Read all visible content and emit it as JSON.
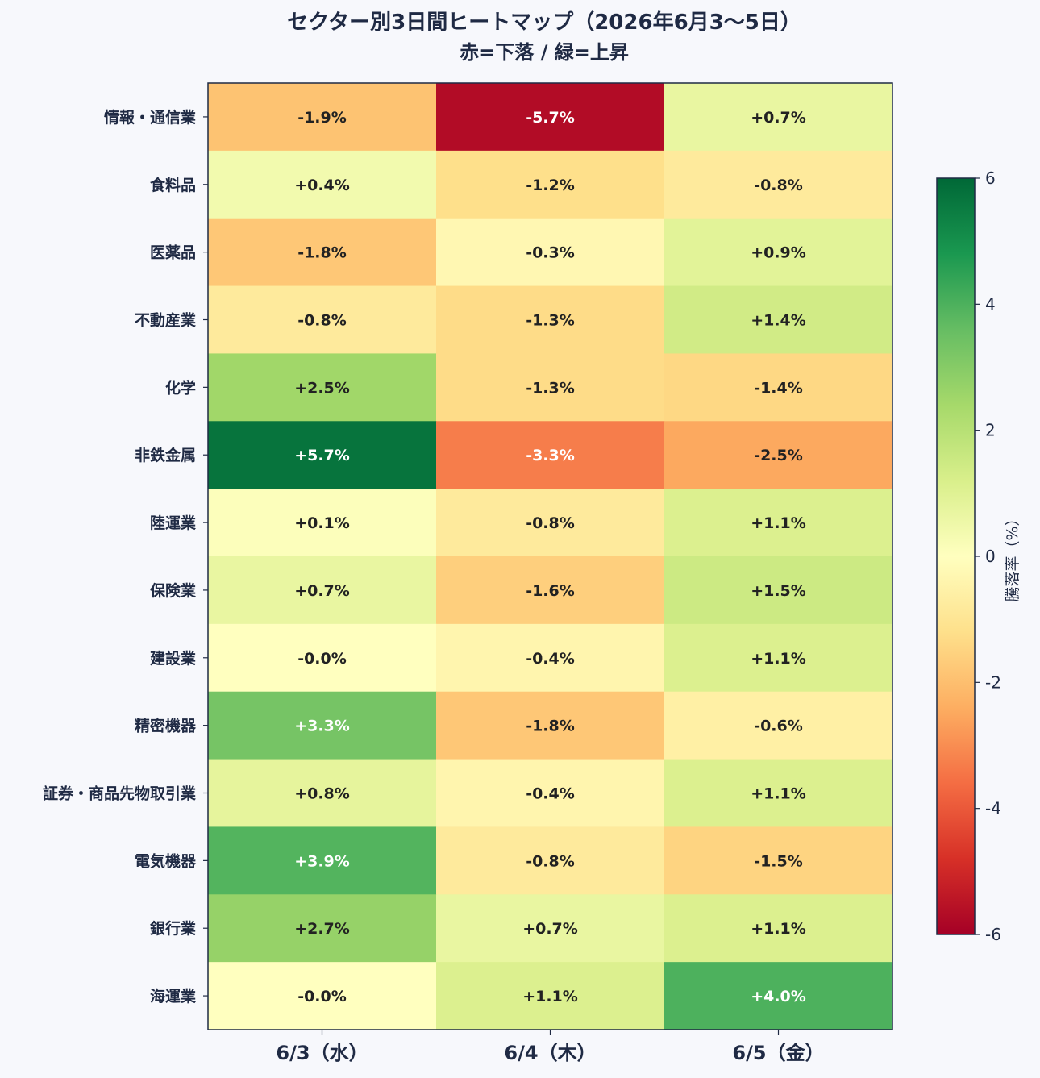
{
  "chart_data": {
    "type": "heatmap",
    "title": "セクター別3日間ヒートマップ（2026年6月3〜5日）",
    "subtitle": "赤=下落 / 緑=上昇",
    "columns": [
      "6/3（水）",
      "6/4（木）",
      "6/5（金）"
    ],
    "rows": [
      "情報・通信業",
      "食料品",
      "医薬品",
      "不動産業",
      "化学",
      "非鉄金属",
      "陸運業",
      "保険業",
      "建設業",
      "精密機器",
      "証券・商品先物取引業",
      "電気機器",
      "銀行業",
      "海運業"
    ],
    "values": [
      [
        -1.9,
        -5.7,
        0.7
      ],
      [
        0.4,
        -1.2,
        -0.8
      ],
      [
        -1.8,
        -0.3,
        0.9
      ],
      [
        -0.8,
        -1.3,
        1.4
      ],
      [
        2.5,
        -1.3,
        -1.4
      ],
      [
        5.7,
        -3.3,
        -2.5
      ],
      [
        0.1,
        -0.8,
        1.1
      ],
      [
        0.7,
        -1.6,
        1.5
      ],
      [
        -0.0,
        -0.4,
        1.1
      ],
      [
        3.3,
        -1.8,
        -0.6
      ],
      [
        0.8,
        -0.4,
        1.1
      ],
      [
        3.9,
        -0.8,
        -1.5
      ],
      [
        2.7,
        0.7,
        1.1
      ],
      [
        -0.0,
        1.1,
        4.0
      ]
    ],
    "labels": [
      [
        "-1.9%",
        "-5.7%",
        "+0.7%"
      ],
      [
        "+0.4%",
        "-1.2%",
        "-0.8%"
      ],
      [
        "-1.8%",
        "-0.3%",
        "+0.9%"
      ],
      [
        "-0.8%",
        "-1.3%",
        "+1.4%"
      ],
      [
        "+2.5%",
        "-1.3%",
        "-1.4%"
      ],
      [
        "+5.7%",
        "-3.3%",
        "-2.5%"
      ],
      [
        "+0.1%",
        "-0.8%",
        "+1.1%"
      ],
      [
        "+0.7%",
        "-1.6%",
        "+1.5%"
      ],
      [
        "-0.0%",
        "-0.4%",
        "+1.1%"
      ],
      [
        "+3.3%",
        "-1.8%",
        "-0.6%"
      ],
      [
        "+0.8%",
        "-0.4%",
        "+1.1%"
      ],
      [
        "+3.9%",
        "-0.8%",
        "-1.5%"
      ],
      [
        "+2.7%",
        "+0.7%",
        "+1.1%"
      ],
      [
        "-0.0%",
        "+1.1%",
        "+4.0%"
      ]
    ],
    "colormap": "RdYlGn",
    "vmin": -6,
    "vmax": 6,
    "colorbar_label": "騰落率（%）",
    "colorbar_ticks": [
      "6",
      "4",
      "2",
      "0",
      "-2",
      "-4",
      "-6"
    ],
    "colorbar_tick_values": [
      6,
      4,
      2,
      0,
      -2,
      -4,
      -6
    ]
  }
}
